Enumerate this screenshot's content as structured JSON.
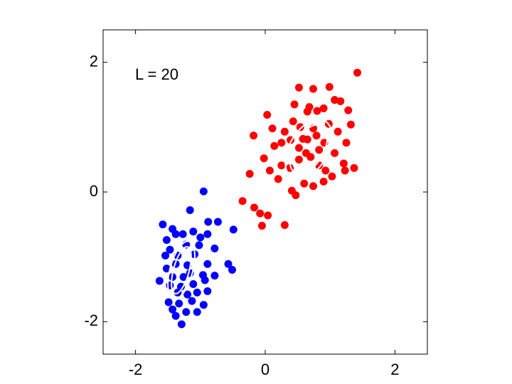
{
  "chart_data": {
    "type": "scatter",
    "annotation": "L = 20",
    "xlim": [
      -2.5,
      2.5
    ],
    "ylim": [
      -2.5,
      2.5
    ],
    "xticks": [
      -2,
      0,
      2
    ],
    "yticks": [
      -2,
      0,
      2
    ],
    "series": [
      {
        "color": "#ff0000",
        "x": [
          1.42,
          0.52,
          0.74,
          0.99,
          1.07,
          1.16,
          1.28,
          0.03,
          0.45,
          0.65,
          0.8,
          0.9,
          1.32,
          0.11,
          -0.18,
          0.3,
          0.43,
          0.54,
          0.74,
          0.98,
          1.12,
          1.25,
          -0.02,
          0.14,
          0.25,
          0.39,
          0.52,
          0.65,
          0.83,
          0.91,
          1.07,
          1.21,
          1.37,
          -0.24,
          0.07,
          0.25,
          0.38,
          0.52,
          0.7,
          0.83,
          0.93,
          1.03,
          1.23,
          0.2,
          0.41,
          0.47,
          0.6,
          0.74,
          0.9,
          -0.35,
          -0.17,
          -0.08,
          0.04,
          -0.05,
          0.3,
          0.68,
          0.63,
          0.79,
          0.58
        ],
        "values": [
          1.84,
          1.61,
          1.59,
          1.62,
          1.42,
          1.4,
          1.26,
          1.19,
          1.35,
          1.24,
          1.25,
          1.29,
          1.04,
          0.98,
          0.87,
          0.93,
          1.09,
          1.0,
          0.98,
          1.05,
          0.93,
          0.76,
          0.52,
          0.71,
          0.76,
          0.8,
          0.68,
          0.81,
          0.65,
          0.76,
          0.6,
          0.44,
          0.37,
          0.28,
          0.33,
          0.41,
          0.37,
          0.5,
          0.54,
          0.41,
          0.33,
          0.24,
          0.33,
          0.2,
          0.02,
          -0.05,
          0.13,
          0.09,
          0.16,
          -0.14,
          -0.24,
          -0.33,
          -0.36,
          -0.52,
          -0.51,
          1.31,
          0.6,
          0.87,
          0.82
        ]
      },
      {
        "color": "#0000ff",
        "x": [
          -0.95,
          -1.16,
          -0.88,
          -1.58,
          -1.43,
          -1.27,
          -1.11,
          -1.0,
          -0.89,
          -0.73,
          -0.49,
          -1.52,
          -1.22,
          -1.02,
          -0.78,
          -1.47,
          -1.35,
          -1.09,
          -1.54,
          -1.38,
          -1.2,
          -0.89,
          -0.57,
          -0.51,
          -1.63,
          -1.43,
          -1.26,
          -0.96,
          -0.78,
          -1.47,
          -1.3,
          -1.11,
          -0.89,
          -1.35,
          -1.2,
          -1.05,
          -1.49,
          -1.33,
          -1.13,
          -0.95,
          -1.43,
          -1.22,
          -1.05,
          -1.38,
          -1.29,
          -0.93,
          -1.16,
          -1.52,
          -1.38
        ],
        "values": [
          0.01,
          -0.28,
          -0.46,
          -0.5,
          -0.57,
          -0.65,
          -0.61,
          -0.7,
          -0.65,
          -0.46,
          -0.58,
          -0.74,
          -0.81,
          -0.82,
          -0.87,
          -0.89,
          -0.98,
          -0.96,
          -0.98,
          -1.11,
          -1.13,
          -1.11,
          -1.11,
          -1.2,
          -1.37,
          -1.31,
          -1.31,
          -1.28,
          -1.29,
          -1.44,
          -1.46,
          -1.42,
          -1.53,
          -1.55,
          -1.58,
          -1.55,
          -1.7,
          -1.72,
          -1.68,
          -1.74,
          -1.81,
          -1.85,
          -1.85,
          -1.91,
          -2.04,
          -1.36,
          -1.25,
          -1.18,
          -0.65
        ]
      }
    ]
  }
}
